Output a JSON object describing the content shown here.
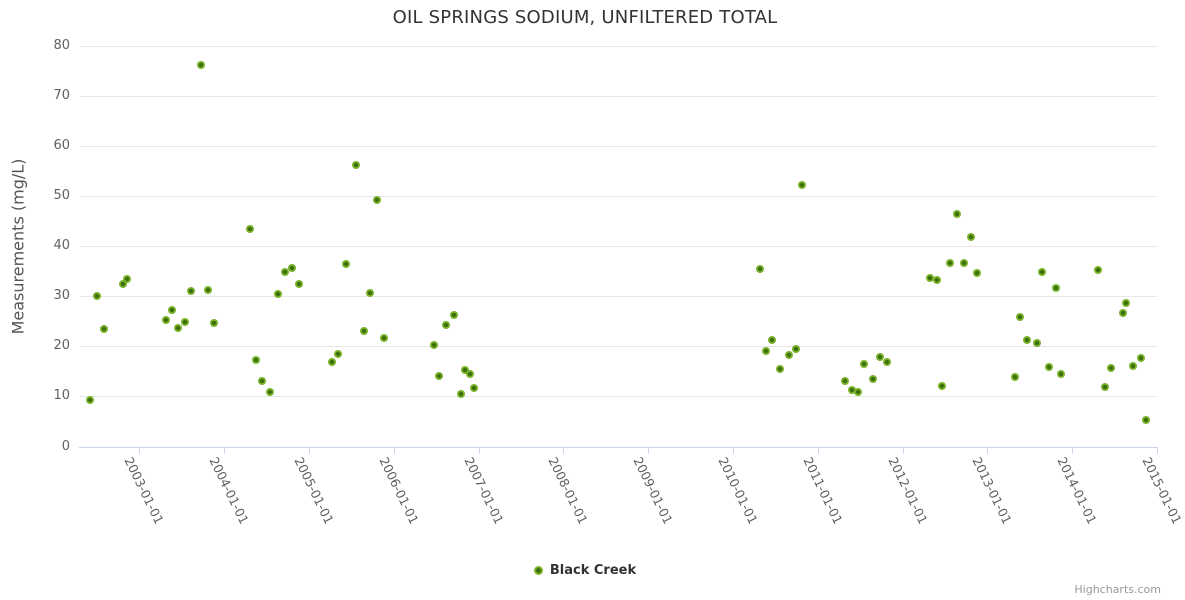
{
  "chart_data": {
    "type": "scatter",
    "title": "OIL SPRINGS SODIUM, UNFILTERED TOTAL",
    "xlabel": "",
    "ylabel": "Measurements (mg/L)",
    "x_axis_type": "datetime",
    "x_unit": "decimal_year",
    "y_unit": "mg/L",
    "xlim": [
      2002.3,
      2015.0
    ],
    "ylim": [
      0,
      80
    ],
    "y_ticks": [
      0,
      10,
      20,
      30,
      40,
      50,
      60,
      70,
      80
    ],
    "x_ticks": [
      {
        "year": 2003,
        "label": "2003-01-01"
      },
      {
        "year": 2004,
        "label": "2004-01-01"
      },
      {
        "year": 2005,
        "label": "2005-01-01"
      },
      {
        "year": 2006,
        "label": "2006-01-01"
      },
      {
        "year": 2007,
        "label": "2007-01-01"
      },
      {
        "year": 2008,
        "label": "2008-01-01"
      },
      {
        "year": 2009,
        "label": "2009-01-01"
      },
      {
        "year": 2010,
        "label": "2010-01-01"
      },
      {
        "year": 2011,
        "label": "2011-01-01"
      },
      {
        "year": 2012,
        "label": "2012-01-01"
      },
      {
        "year": 2013,
        "label": "2013-01-01"
      },
      {
        "year": 2014,
        "label": "2014-01-01"
      },
      {
        "year": 2015,
        "label": "2015-01-01"
      }
    ],
    "grid": true,
    "legend_position": "bottom-center",
    "credits": "Highcharts.com",
    "colors": {
      "marker_ring": "#7ab22c",
      "marker_core": "#3d700c",
      "grid_line": "#e6e6e6",
      "axis_line": "#ccd6eb",
      "axis_label": "#606060",
      "title_text": "#333333"
    },
    "series": [
      {
        "name": "Black Creek",
        "marker": "two-tone-green-circle",
        "points": [
          [
            2002.42,
            9.3
          ],
          [
            2002.5,
            30.1
          ],
          [
            2002.58,
            23.5
          ],
          [
            2002.81,
            32.4
          ],
          [
            2002.86,
            33.4
          ],
          [
            2003.31,
            25.2
          ],
          [
            2003.38,
            27.2
          ],
          [
            2003.46,
            23.6
          ],
          [
            2003.54,
            24.9
          ],
          [
            2003.61,
            31.1
          ],
          [
            2003.73,
            76.2
          ],
          [
            2003.81,
            31.3
          ],
          [
            2003.88,
            24.6
          ],
          [
            2004.3,
            43.4
          ],
          [
            2004.37,
            17.3
          ],
          [
            2004.45,
            13.0
          ],
          [
            2004.54,
            10.8
          ],
          [
            2004.63,
            30.5
          ],
          [
            2004.72,
            34.8
          ],
          [
            2004.8,
            35.6
          ],
          [
            2004.88,
            32.4
          ],
          [
            2005.27,
            16.8
          ],
          [
            2005.34,
            18.4
          ],
          [
            2005.44,
            36.5
          ],
          [
            2005.55,
            56.2
          ],
          [
            2005.65,
            23.1
          ],
          [
            2005.72,
            30.6
          ],
          [
            2005.8,
            49.2
          ],
          [
            2005.89,
            21.6
          ],
          [
            2006.47,
            20.2
          ],
          [
            2006.53,
            14.0
          ],
          [
            2006.62,
            24.2
          ],
          [
            2006.71,
            26.2
          ],
          [
            2006.79,
            10.4
          ],
          [
            2006.84,
            15.2
          ],
          [
            2006.9,
            14.4
          ],
          [
            2006.95,
            11.6
          ],
          [
            2010.32,
            35.4
          ],
          [
            2010.39,
            19.0
          ],
          [
            2010.46,
            21.2
          ],
          [
            2010.56,
            15.4
          ],
          [
            2010.66,
            18.3
          ],
          [
            2010.74,
            19.5
          ],
          [
            2010.81,
            52.3
          ],
          [
            2011.32,
            13.0
          ],
          [
            2011.4,
            11.2
          ],
          [
            2011.47,
            10.8
          ],
          [
            2011.54,
            16.4
          ],
          [
            2011.65,
            13.5
          ],
          [
            2011.73,
            17.9
          ],
          [
            2011.82,
            16.8
          ],
          [
            2012.32,
            33.6
          ],
          [
            2012.41,
            33.2
          ],
          [
            2012.47,
            12.1
          ],
          [
            2012.56,
            36.7
          ],
          [
            2012.64,
            46.5
          ],
          [
            2012.72,
            36.7
          ],
          [
            2012.81,
            41.8
          ],
          [
            2012.88,
            34.6
          ],
          [
            2013.32,
            13.8
          ],
          [
            2013.39,
            25.8
          ],
          [
            2013.47,
            21.3
          ],
          [
            2013.59,
            20.6
          ],
          [
            2013.64,
            34.9
          ],
          [
            2013.73,
            15.8
          ],
          [
            2013.81,
            31.7
          ],
          [
            2013.87,
            14.4
          ],
          [
            2014.31,
            35.2
          ],
          [
            2014.39,
            11.8
          ],
          [
            2014.46,
            15.6
          ],
          [
            2014.6,
            26.7
          ],
          [
            2014.64,
            28.6
          ],
          [
            2014.72,
            16.0
          ],
          [
            2014.81,
            17.6
          ],
          [
            2014.87,
            5.3
          ]
        ]
      }
    ]
  }
}
